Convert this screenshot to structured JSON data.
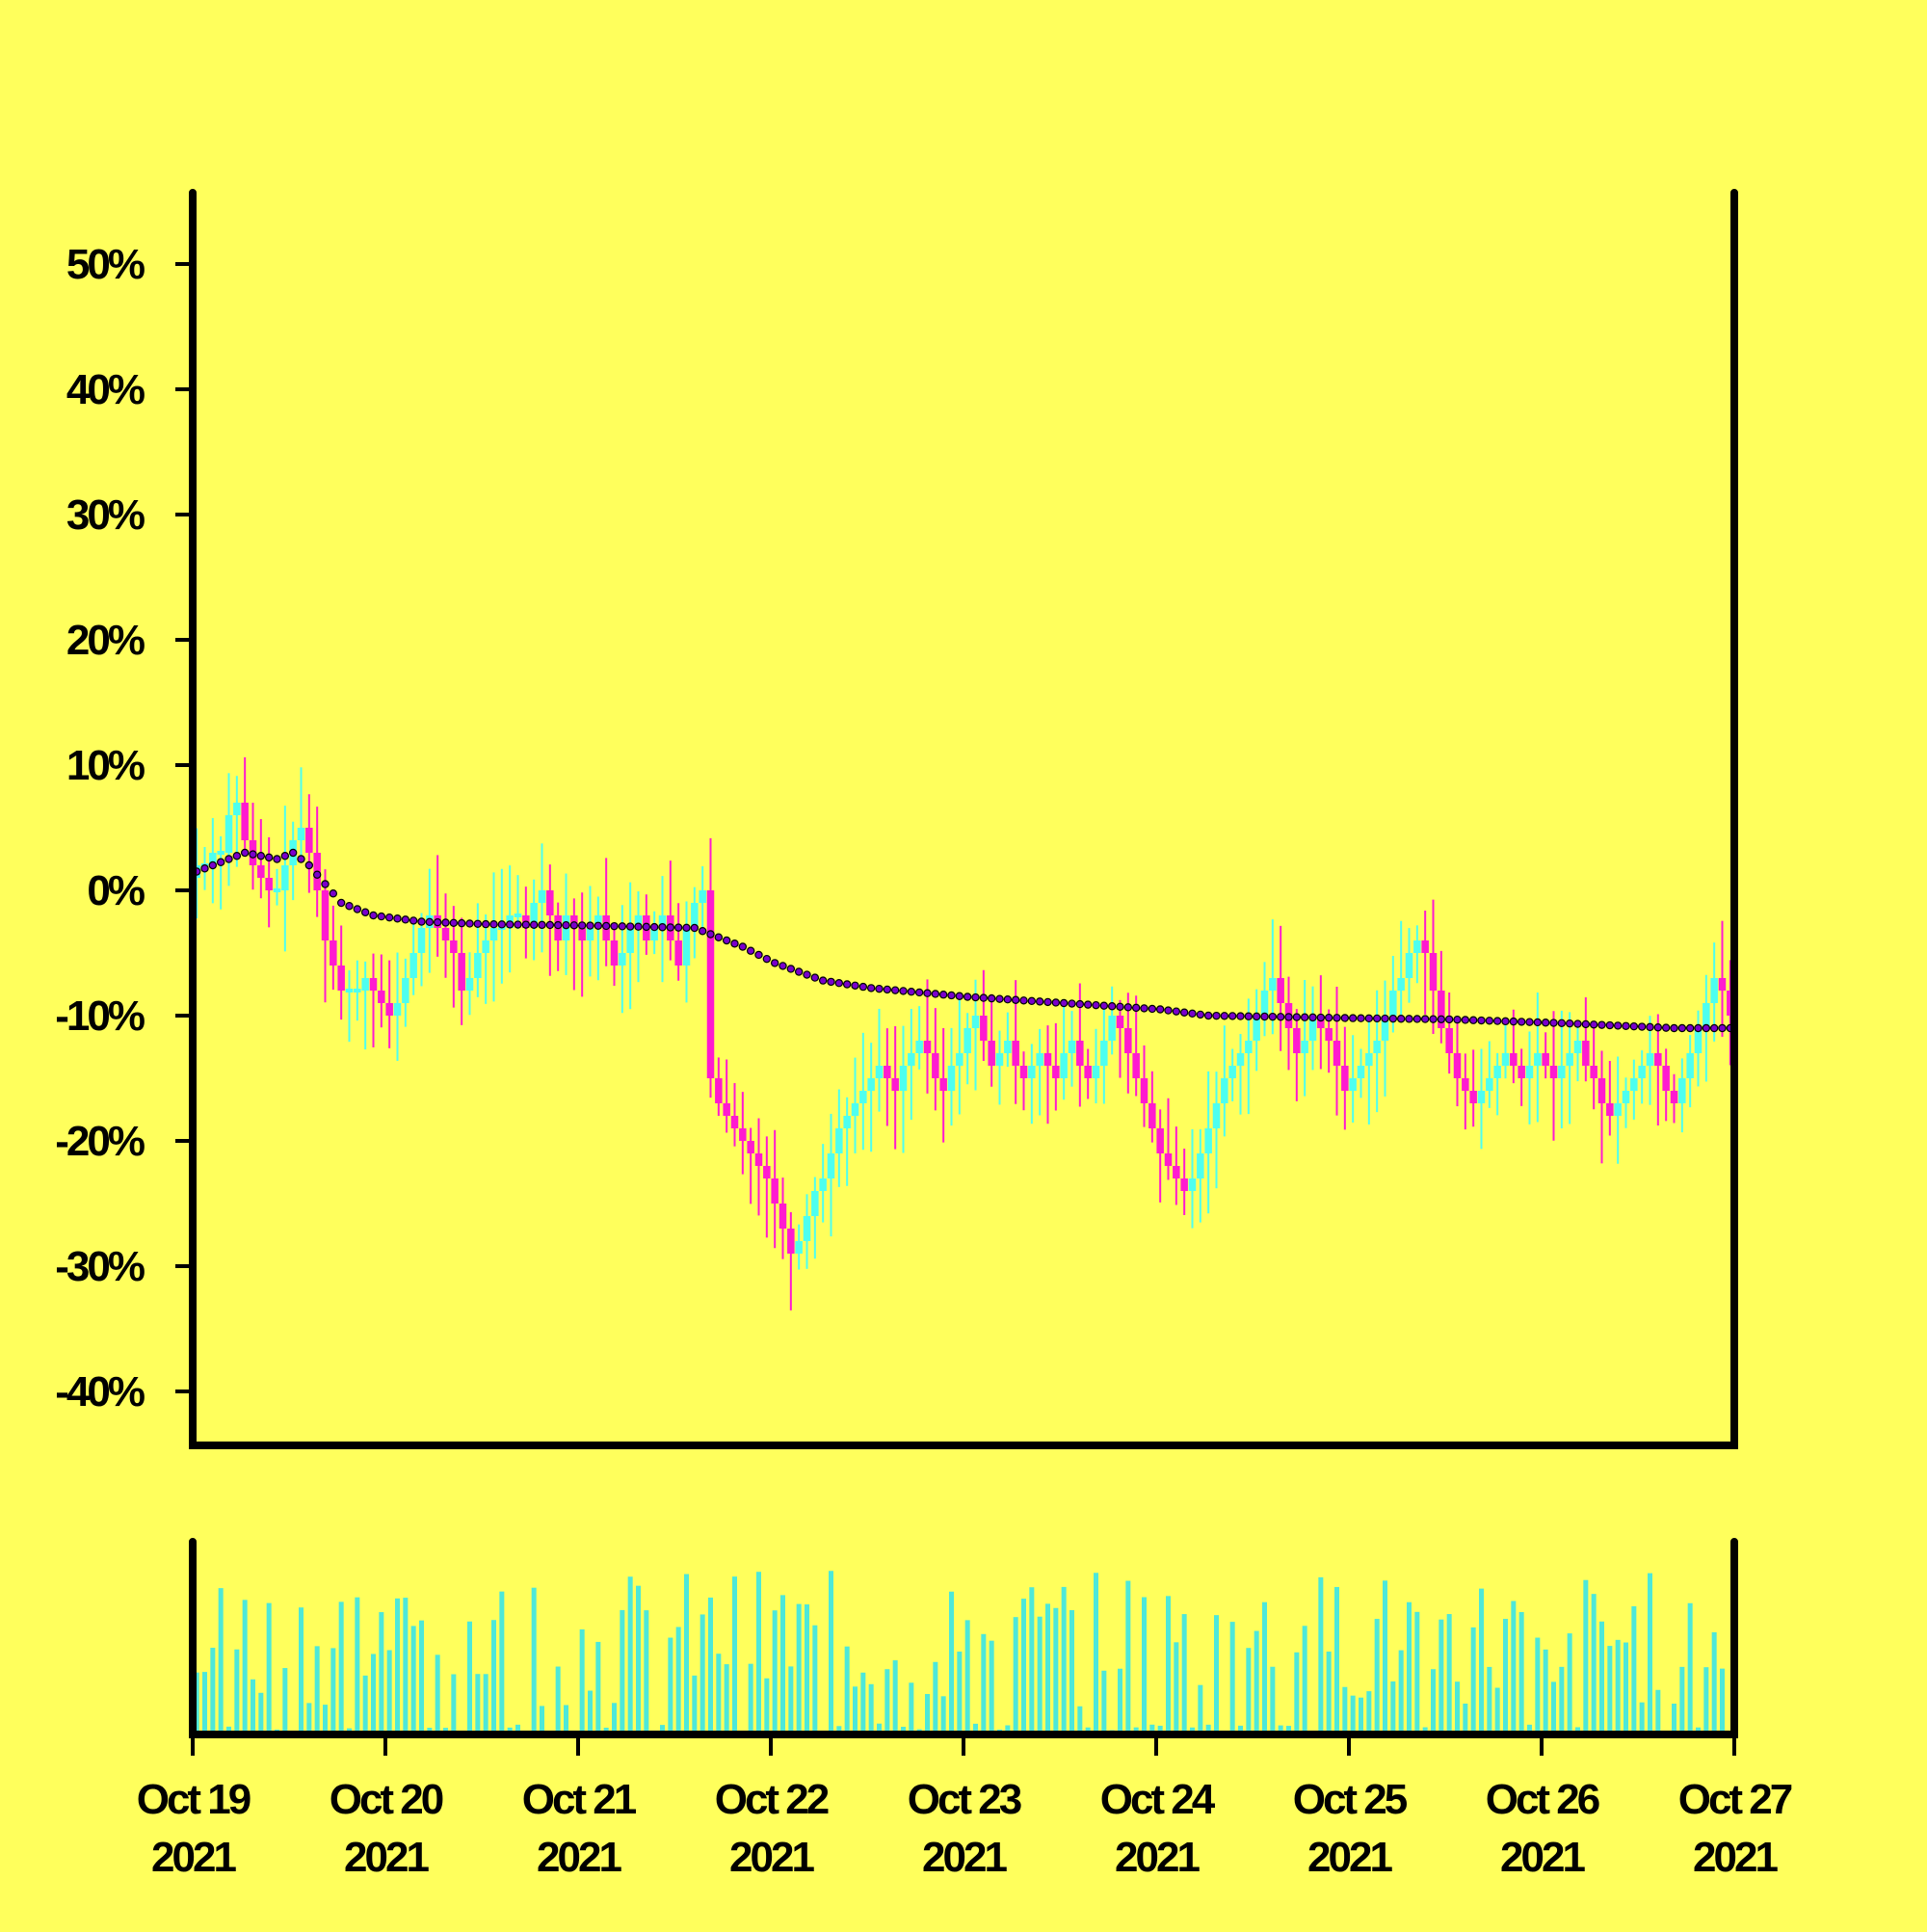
{
  "chart_data": {
    "type": "candlestick",
    "y_tick_labels": [
      "50%",
      "40%",
      "30%",
      "20%",
      "10%",
      "0%",
      "-10%",
      "-20%",
      "-30%",
      "-40%"
    ],
    "y_tick_values": [
      50,
      40,
      30,
      20,
      10,
      0,
      -10,
      -20,
      -30,
      -40
    ],
    "ylim": [
      -44,
      56
    ],
    "x_tick_labels": [
      {
        "line1": "Oct 19",
        "line2": "2021"
      },
      {
        "line1": "Oct 20",
        "line2": "2021"
      },
      {
        "line1": "Oct 21",
        "line2": "2021"
      },
      {
        "line1": "Oct 22",
        "line2": "2021"
      },
      {
        "line1": "Oct 23",
        "line2": "2021"
      },
      {
        "line1": "Oct 24",
        "line2": "2021"
      },
      {
        "line1": "Oct 25",
        "line2": "2021"
      },
      {
        "line1": "Oct 26",
        "line2": "2021"
      },
      {
        "line1": "Oct 27",
        "line2": "2021"
      }
    ],
    "x_tick_values": [
      0,
      1,
      2,
      3,
      4,
      5,
      6,
      7,
      8
    ],
    "xlim": [
      0,
      8
    ],
    "bars_per_day": 24,
    "close_path_pct": [
      [
        0,
        2
      ],
      [
        1,
        2
      ],
      [
        2,
        3
      ],
      [
        3,
        3
      ],
      [
        4,
        6
      ],
      [
        5,
        7
      ],
      [
        6,
        4
      ],
      [
        7,
        2
      ],
      [
        8,
        1
      ],
      [
        9,
        0
      ],
      [
        10,
        0
      ],
      [
        11,
        2
      ],
      [
        12,
        4
      ],
      [
        13,
        5
      ],
      [
        14,
        3
      ],
      [
        15,
        0
      ],
      [
        16,
        -4
      ],
      [
        17,
        -6
      ],
      [
        18,
        -8
      ],
      [
        19,
        -8
      ],
      [
        20,
        -8
      ],
      [
        21,
        -7
      ],
      [
        22,
        -8
      ],
      [
        23,
        -9
      ],
      [
        24,
        -10
      ],
      [
        25,
        -9
      ],
      [
        26,
        -7
      ],
      [
        27,
        -5
      ],
      [
        28,
        -3
      ],
      [
        29,
        -2
      ],
      [
        30,
        -3
      ],
      [
        31,
        -4
      ],
      [
        32,
        -5
      ],
      [
        33,
        -8
      ],
      [
        34,
        -7
      ],
      [
        35,
        -5
      ],
      [
        36,
        -4
      ],
      [
        37,
        -3
      ],
      [
        38,
        -3
      ],
      [
        39,
        -2
      ],
      [
        40,
        -2
      ],
      [
        41,
        -3
      ],
      [
        42,
        -1
      ],
      [
        43,
        0
      ],
      [
        44,
        -2
      ],
      [
        45,
        -4
      ],
      [
        46,
        -2
      ],
      [
        47,
        -3
      ],
      [
        48,
        -4
      ],
      [
        49,
        -3
      ],
      [
        50,
        -2
      ],
      [
        51,
        -4
      ],
      [
        52,
        -6
      ],
      [
        53,
        -5
      ],
      [
        54,
        -3
      ],
      [
        55,
        -2
      ],
      [
        56,
        -4
      ],
      [
        57,
        -3
      ],
      [
        58,
        -2
      ],
      [
        59,
        -4
      ],
      [
        60,
        -6
      ],
      [
        61,
        -3
      ],
      [
        62,
        -1
      ],
      [
        63,
        0
      ],
      [
        64,
        -15
      ],
      [
        65,
        -17
      ],
      [
        66,
        -18
      ],
      [
        67,
        -19
      ],
      [
        68,
        -20
      ],
      [
        69,
        -21
      ],
      [
        70,
        -22
      ],
      [
        71,
        -23
      ],
      [
        72,
        -25
      ],
      [
        73,
        -27
      ],
      [
        74,
        -29
      ],
      [
        75,
        -28
      ],
      [
        76,
        -26
      ],
      [
        77,
        -24
      ],
      [
        78,
        -23
      ],
      [
        79,
        -21
      ],
      [
        80,
        -19
      ],
      [
        81,
        -18
      ],
      [
        82,
        -17
      ],
      [
        83,
        -16
      ],
      [
        84,
        -15
      ],
      [
        85,
        -14
      ],
      [
        86,
        -15
      ],
      [
        87,
        -16
      ],
      [
        88,
        -14
      ],
      [
        89,
        -13
      ],
      [
        90,
        -12
      ],
      [
        91,
        -13
      ],
      [
        92,
        -15
      ],
      [
        93,
        -16
      ],
      [
        94,
        -14
      ],
      [
        95,
        -13
      ],
      [
        96,
        -11
      ],
      [
        97,
        -10
      ],
      [
        98,
        -12
      ],
      [
        99,
        -14
      ],
      [
        100,
        -13
      ],
      [
        101,
        -12
      ],
      [
        102,
        -14
      ],
      [
        103,
        -15
      ],
      [
        104,
        -14
      ],
      [
        105,
        -13
      ],
      [
        106,
        -14
      ],
      [
        107,
        -15
      ],
      [
        108,
        -13
      ],
      [
        109,
        -12
      ],
      [
        110,
        -14
      ],
      [
        111,
        -15
      ],
      [
        112,
        -14
      ],
      [
        113,
        -12
      ],
      [
        114,
        -10
      ],
      [
        115,
        -11
      ],
      [
        116,
        -13
      ],
      [
        117,
        -15
      ],
      [
        118,
        -17
      ],
      [
        119,
        -19
      ],
      [
        120,
        -21
      ],
      [
        121,
        -22
      ],
      [
        122,
        -23
      ],
      [
        123,
        -24
      ],
      [
        124,
        -23
      ],
      [
        125,
        -21
      ],
      [
        126,
        -19
      ],
      [
        127,
        -17
      ],
      [
        128,
        -15
      ],
      [
        129,
        -14
      ],
      [
        130,
        -13
      ],
      [
        131,
        -12
      ],
      [
        132,
        -10
      ],
      [
        133,
        -8
      ],
      [
        134,
        -7
      ],
      [
        135,
        -9
      ],
      [
        136,
        -11
      ],
      [
        137,
        -13
      ],
      [
        138,
        -12
      ],
      [
        139,
        -10
      ],
      [
        140,
        -11
      ],
      [
        141,
        -12
      ],
      [
        142,
        -14
      ],
      [
        143,
        -16
      ],
      [
        144,
        -15
      ],
      [
        145,
        -14
      ],
      [
        146,
        -13
      ],
      [
        147,
        -12
      ],
      [
        148,
        -10
      ],
      [
        149,
        -8
      ],
      [
        150,
        -7
      ],
      [
        151,
        -5
      ],
      [
        152,
        -4
      ],
      [
        153,
        -5
      ],
      [
        154,
        -8
      ],
      [
        155,
        -11
      ],
      [
        156,
        -13
      ],
      [
        157,
        -15
      ],
      [
        158,
        -16
      ],
      [
        159,
        -17
      ],
      [
        160,
        -16
      ],
      [
        161,
        -15
      ],
      [
        162,
        -14
      ],
      [
        163,
        -13
      ],
      [
        164,
        -14
      ],
      [
        165,
        -15
      ],
      [
        166,
        -14
      ],
      [
        167,
        -13
      ],
      [
        168,
        -14
      ],
      [
        169,
        -15
      ],
      [
        170,
        -14
      ],
      [
        171,
        -13
      ],
      [
        172,
        -12
      ],
      [
        173,
        -14
      ],
      [
        174,
        -15
      ],
      [
        175,
        -17
      ],
      [
        176,
        -18
      ],
      [
        177,
        -17
      ],
      [
        178,
        -16
      ],
      [
        179,
        -15
      ],
      [
        180,
        -14
      ],
      [
        181,
        -13
      ],
      [
        182,
        -14
      ],
      [
        183,
        -16
      ],
      [
        184,
        -17
      ],
      [
        185,
        -15
      ],
      [
        186,
        -13
      ],
      [
        187,
        -11
      ],
      [
        188,
        -9
      ],
      [
        189,
        -7
      ],
      [
        190,
        -8
      ],
      [
        191,
        -10
      ]
    ],
    "moving_average_pct": [
      [
        0,
        1.5
      ],
      [
        4,
        2.5
      ],
      [
        6,
        3
      ],
      [
        10,
        2.5
      ],
      [
        12,
        3
      ],
      [
        14,
        2
      ],
      [
        18,
        -1
      ],
      [
        22,
        -2
      ],
      [
        28,
        -2.5
      ],
      [
        36,
        -2.7
      ],
      [
        48,
        -2.8
      ],
      [
        62,
        -3
      ],
      [
        68,
        -4.5
      ],
      [
        72,
        -5.8
      ],
      [
        78,
        -7.2
      ],
      [
        84,
        -7.8
      ],
      [
        96,
        -8.5
      ],
      [
        108,
        -9
      ],
      [
        120,
        -9.5
      ],
      [
        126,
        -10
      ],
      [
        144,
        -10.2
      ],
      [
        156,
        -10.3
      ],
      [
        170,
        -10.6
      ],
      [
        184,
        -11
      ],
      [
        191,
        -11
      ]
    ],
    "colors": {
      "background": "#ffff5c",
      "up": "#4dfff0",
      "down": "#ff1ad0",
      "moving_average": "#7a00cc",
      "volume": "#4de8d9",
      "axis": "#000000"
    }
  }
}
